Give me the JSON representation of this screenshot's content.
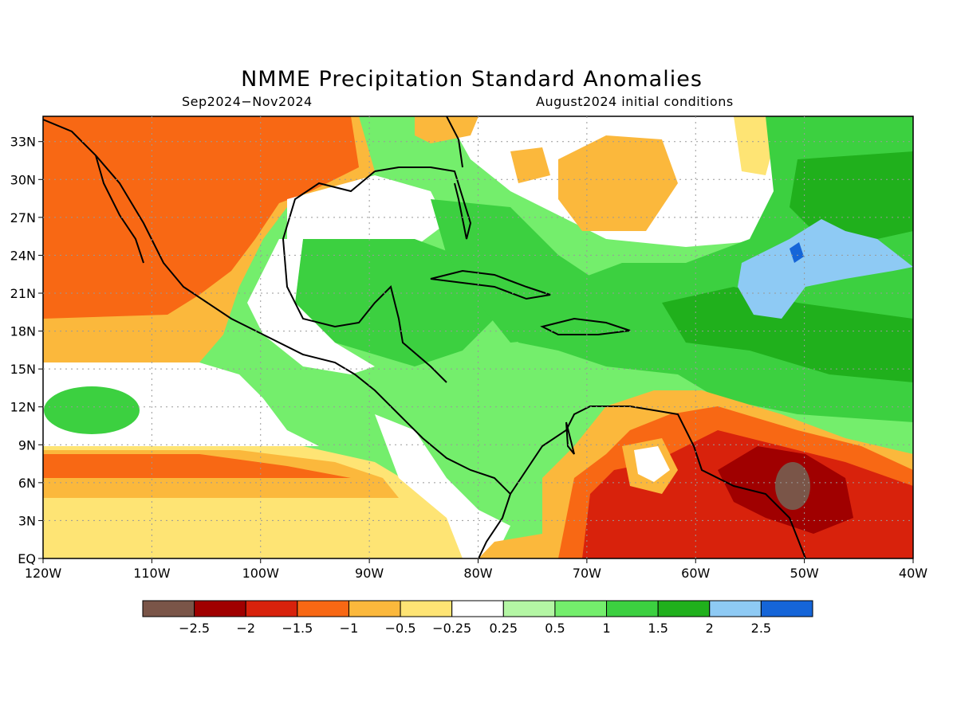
{
  "title": "NMME Precipitation Standard Anomalies",
  "period": "Sep2024−Nov2024",
  "initial_conditions": "August2024 initial conditions",
  "lat_labels": [
    "33N",
    "30N",
    "27N",
    "24N",
    "21N",
    "18N",
    "15N",
    "12N",
    "9N",
    "6N",
    "3N",
    "EQ"
  ],
  "lat_values": [
    33,
    30,
    27,
    24,
    21,
    18,
    15,
    12,
    9,
    6,
    3,
    0
  ],
  "lon_labels": [
    "120W",
    "110W",
    "100W",
    "90W",
    "80W",
    "70W",
    "60W",
    "50W",
    "40W"
  ],
  "lon_values": [
    -120,
    -110,
    -100,
    -90,
    -80,
    -70,
    -60,
    -50,
    -40
  ],
  "colorbar": {
    "colors": [
      "#7a5548",
      "#a00000",
      "#d8220c",
      "#f86814",
      "#fbb83c",
      "#fee474",
      "#ffffff",
      "#b4f6a4",
      "#74ee6c",
      "#3cd040",
      "#20b01c",
      "#8ecaf4",
      "#1565d8"
    ],
    "labels": [
      "−2.5",
      "−2",
      "−1.5",
      "−1",
      "−0.5",
      "−0.25",
      "0.25",
      "0.5",
      "1",
      "1.5",
      "2",
      "2.5"
    ],
    "values": [
      -2.5,
      -2,
      -1.5,
      -1,
      -0.5,
      -0.25,
      0.25,
      0.5,
      1,
      1.5,
      2,
      2.5
    ]
  }
}
